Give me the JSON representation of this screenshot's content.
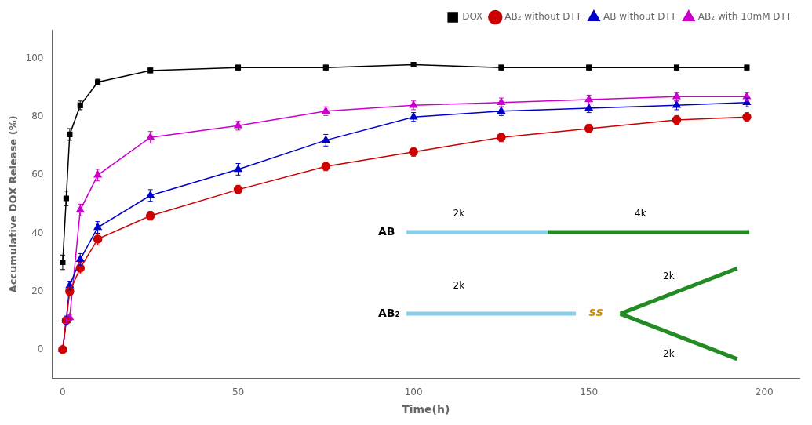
{
  "chart_data": {
    "type": "line",
    "x_label": "Time(h)",
    "y_label": "Accumulative DOX Release (%)",
    "x": [
      0,
      1,
      2,
      5,
      10,
      25,
      50,
      75,
      100,
      125,
      150,
      175,
      195
    ],
    "series": [
      {
        "name": "DOX",
        "color": "#000000",
        "marker": "square",
        "values": [
          30,
          52,
          74,
          84,
          92,
          96,
          97,
          97,
          98,
          97,
          97,
          97,
          97
        ],
        "error": [
          2.5,
          2.5,
          2.0,
          1.5,
          1.0,
          0.8,
          0.8,
          0.8,
          0.8,
          0.8,
          0.8,
          0.8,
          0.8
        ]
      },
      {
        "name": "AB₂ without DTT",
        "color": "#cc0000",
        "marker": "circle",
        "values": [
          0,
          10,
          20,
          28,
          38,
          46,
          55,
          63,
          68,
          73,
          76,
          79,
          80
        ],
        "error": [
          0,
          1,
          1.5,
          2,
          2,
          1.5,
          1.5,
          1.5,
          1.5,
          1.5,
          1.5,
          1.5,
          1.5
        ]
      },
      {
        "name": "AB without DTT",
        "color": "#0000cc",
        "marker": "triangle",
        "values": [
          0,
          10,
          22,
          31,
          42,
          53,
          62,
          72,
          80,
          82,
          83,
          84,
          85
        ],
        "error": [
          0,
          1.5,
          1.5,
          2,
          2,
          2,
          2,
          2,
          1.5,
          1.5,
          1.5,
          1.5,
          1.5
        ]
      },
      {
        "name": "AB₂ with 10mM DTT",
        "color": "#cc00cc",
        "marker": "triangle",
        "values": [
          0,
          10,
          11,
          48,
          60,
          73,
          77,
          82,
          84,
          85,
          86,
          87,
          87
        ],
        "error": [
          0,
          1,
          1,
          2,
          2,
          2,
          1.5,
          1.5,
          1.5,
          1.5,
          1.5,
          1.5,
          1.5
        ]
      }
    ],
    "xlim": [
      -3,
      210
    ],
    "ylim": [
      -10,
      110
    ],
    "xticks": [
      0,
      50,
      100,
      150,
      200
    ],
    "yticks": [
      0,
      20,
      40,
      60,
      80,
      100
    ],
    "grid": false,
    "legend": "upper right",
    "annotations": [
      {
        "text": "AB",
        "parts": [
          {
            "text": "2k",
            "color": "#87CEEB"
          },
          {
            "text": "4k",
            "color": "#228B22"
          }
        ]
      },
      {
        "text": "AB₂",
        "stem": {
          "text": "2k",
          "color": "#87CEEB"
        },
        "link": {
          "text": "SS",
          "color": "#CC8800"
        },
        "branches": [
          {
            "text": "2k",
            "color": "#228B22"
          },
          {
            "text": "2k",
            "color": "#228B22"
          }
        ]
      }
    ]
  }
}
